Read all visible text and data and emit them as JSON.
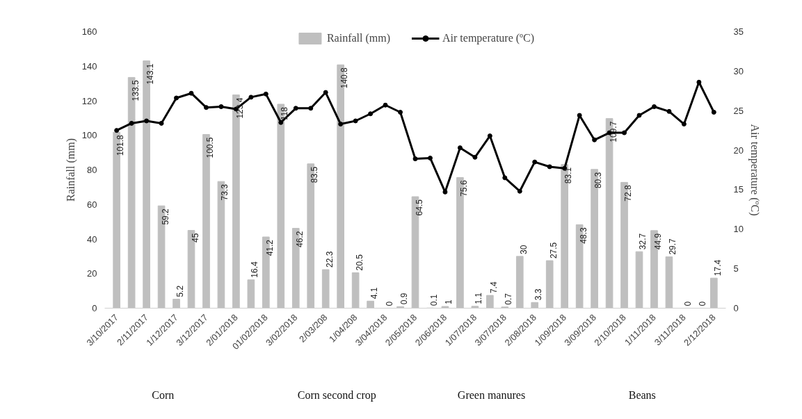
{
  "chart_data": {
    "type": "bar",
    "categories": [
      "3/10/2017",
      null,
      "2/11/2017",
      null,
      "1/12/2017",
      null,
      "3/12/2017",
      null,
      "2/01/2018",
      null,
      "01/02/2018",
      null,
      "3/02/2018",
      null,
      "2/03/208",
      null,
      "1/04/208",
      null,
      "3/04/2018",
      null,
      "2/05/2018",
      null,
      "2/06/2018",
      null,
      "1/07/2018",
      null,
      "3/07/2018",
      null,
      "2/08/2018",
      null,
      "1/09/2018",
      null,
      "3/09/2018",
      null,
      "2/10/2018",
      null,
      "1/11/2018",
      null,
      "3/11/2018",
      null,
      "2/12/2018"
    ],
    "ylabel": "Rainfall (mm)",
    "y2label": "Air temperature (ºC)",
    "ylim": [
      0,
      160
    ],
    "yticks": [
      0,
      20,
      40,
      60,
      80,
      100,
      120,
      140,
      160
    ],
    "y2lim": [
      0,
      35
    ],
    "y2ticks": [
      0,
      5,
      10,
      15,
      20,
      25,
      30,
      35
    ],
    "series": [
      {
        "name": "Rainfall (mm)",
        "color": "#bfbfbf",
        "values": [
          101.8,
          133.5,
          143.1,
          59.2,
          5.2,
          45,
          100.5,
          73.3,
          123.4,
          16.4,
          41.2,
          118,
          46.2,
          83.5,
          22.3,
          140.8,
          20.5,
          4.1,
          0,
          0.9,
          64.5,
          0.1,
          1,
          75.6,
          1.1,
          7.4,
          0.7,
          30,
          3.3,
          27.5,
          83.1,
          48.3,
          80.3,
          109.7,
          72.8,
          32.7,
          44.9,
          29.7,
          0,
          0,
          17.4
        ],
        "value_labels": [
          "101.8",
          "133.5",
          "143.1",
          "59.2",
          "5.2",
          "45",
          "100.5",
          "73.3",
          "123.4",
          "16.4",
          "41.2",
          "118",
          "46.2",
          "83.5",
          "22.3",
          "140.8",
          "20.5",
          "4.1",
          "0",
          "0.9",
          "64.5",
          "0.1",
          "1",
          "75.6",
          "1.1",
          "7.4",
          "0.7",
          "30",
          "3.3",
          "27.5",
          "83.1",
          "48.3",
          "80.3",
          "109.7",
          "72.8",
          "32.7",
          "44.9",
          "29.7",
          "0",
          "0",
          "17.4"
        ]
      },
      {
        "name": "Air temperature (ºC)",
        "type": "line",
        "axis": "y2",
        "color": "#000000",
        "marker": "circle",
        "values": [
          22.5,
          23.4,
          23.7,
          23.4,
          26.6,
          27.2,
          25.4,
          25.5,
          25.2,
          26.7,
          27.1,
          23.5,
          25.3,
          25.3,
          27.3,
          23.3,
          23.7,
          24.6,
          25.7,
          24.8,
          18.9,
          19.0,
          14.7,
          20.3,
          19.1,
          21.8,
          16.5,
          14.8,
          18.5,
          17.9,
          17.7,
          24.4,
          21.3,
          22.2,
          22.2,
          24.4,
          25.5,
          24.9,
          23.3,
          28.6,
          24.8
        ]
      }
    ],
    "legend": "top",
    "grid": false,
    "annotations": [
      "Corn",
      "Corn second crop",
      "Green manures",
      "Beans"
    ]
  }
}
